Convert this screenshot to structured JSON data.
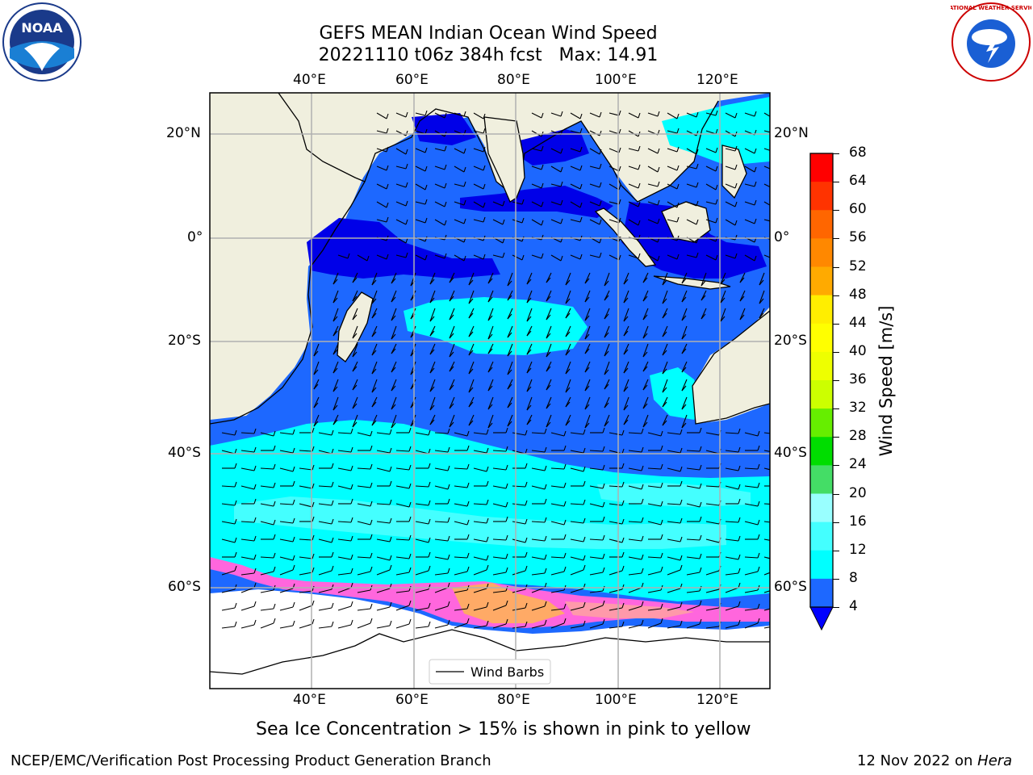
{
  "title": {
    "line1": "GEFS MEAN Indian Ocean Wind Speed",
    "line2": "20221110 t06z 384h fcst   Max: 14.91"
  },
  "map": {
    "lon_labels": [
      "40°E",
      "60°E",
      "80°E",
      "100°E",
      "120°E"
    ],
    "lat_labels": [
      "20°N",
      "0°",
      "20°S",
      "40°S",
      "60°S"
    ],
    "legend_label": "Wind Barbs",
    "ocean_color": "#1d68ff",
    "land_color": "#f0efde",
    "sea_ice_colors": [
      "#ff66dd",
      "#ff99aa",
      "#ffaa66"
    ]
  },
  "colorbar": {
    "label": "Wind Speed [m/s]",
    "ticks": [
      "68",
      "64",
      "60",
      "56",
      "52",
      "48",
      "44",
      "40",
      "36",
      "32",
      "28",
      "24",
      "20",
      "16",
      "12",
      "8",
      "4"
    ],
    "colors": [
      "#ff0000",
      "#ff3300",
      "#ff6600",
      "#ff8800",
      "#ffaa00",
      "#ffcc00",
      "#ffee00",
      "#ffff00",
      "#eeff00",
      "#ccff00",
      "#66ee00",
      "#00dd00",
      "#44dd66",
      "#66ff99",
      "#99ffff",
      "#44ffff",
      "#00ffff",
      "#1d68ff"
    ],
    "extend_color": "#0000ff"
  },
  "note": "Sea Ice Concentration > 15% is shown in pink to yellow",
  "footer": {
    "left": "NCEP/EMC/Verification Post Processing Product Generation Branch",
    "date": "12 Nov 2022 on ",
    "machine": "Hera"
  },
  "logos": {
    "noaa_text": "NOAA",
    "nws_text": "NATIONAL WEATHER SERVICE"
  }
}
